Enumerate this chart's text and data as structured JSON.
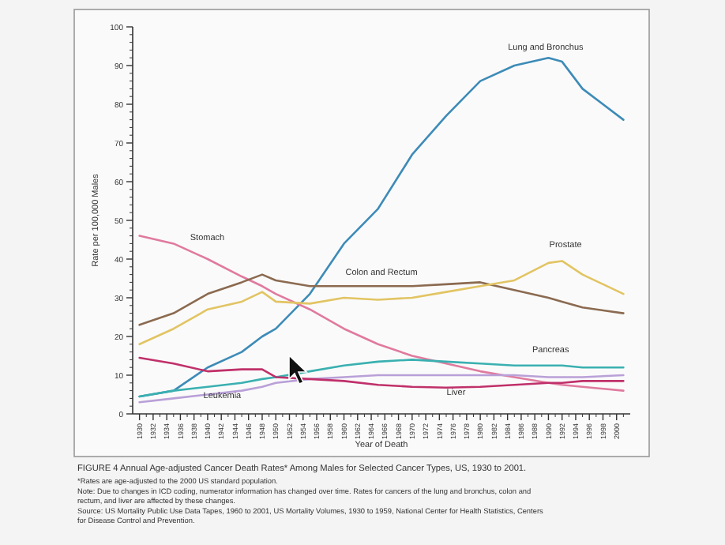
{
  "chart_data": {
    "type": "line",
    "title": "FIGURE 4  Annual Age-adjusted Cancer Death Rates* Among Males for Selected Cancer Types, US, 1930 to 2001.",
    "xlabel": "Year of Death",
    "ylabel": "Rate per 100,000 Males",
    "annotations": [
      "*Rates are age-adjusted to the 2000 US standard population.",
      "Note: Due to changes in ICD coding, numerator information has changed over time. Rates for cancers of the lung and bronchus, colon and rectum, and liver are affected by these changes.",
      "Source: US Mortality Public Use Data Tapes, 1960 to 2001, US Mortality Volumes, 1930 to 1959, National Center for Health Statistics, Centers for Disease Control and Prevention."
    ],
    "x": [
      1930,
      1935,
      1940,
      1945,
      1948,
      1950,
      1955,
      1960,
      1965,
      1970,
      1975,
      1980,
      1985,
      1990,
      1992,
      1995,
      2001
    ],
    "series": [
      {
        "name": "Lung and Bronchus",
        "color": "#3d8bb8",
        "values": [
          4.5,
          6,
          12,
          16,
          20,
          22,
          31,
          44,
          53,
          67,
          77,
          86,
          90,
          92,
          91,
          84,
          76
        ]
      },
      {
        "name": "Stomach",
        "color": "#e07a9e",
        "values": [
          46,
          44,
          40,
          35.5,
          33,
          31,
          27,
          22,
          18,
          15,
          13,
          11,
          9.5,
          8,
          7.5,
          7,
          6
        ]
      },
      {
        "name": "Colon and Rectum",
        "color": "#8b6a50",
        "values": [
          23,
          26,
          31,
          34,
          36,
          34.5,
          33,
          33,
          33,
          33,
          33.5,
          34,
          32,
          30,
          29,
          27.5,
          26
        ]
      },
      {
        "name": "Prostate",
        "color": "#e2c463",
        "values": [
          18,
          22,
          27,
          29,
          31.5,
          29,
          28.5,
          30,
          29.5,
          30,
          31.5,
          33,
          34.5,
          39,
          39.5,
          36,
          31
        ]
      },
      {
        "name": "Pancreas",
        "color": "#3ab0b0",
        "values": [
          4.5,
          6,
          7,
          8,
          9,
          9.5,
          11,
          12.5,
          13.5,
          14,
          13.5,
          13,
          12.5,
          12.5,
          12.5,
          12,
          12
        ]
      },
      {
        "name": "Leukemia",
        "color": "#b9a0d8",
        "values": [
          3,
          4,
          5,
          6,
          7,
          8,
          9,
          9.5,
          10,
          10,
          10,
          10,
          10,
          9.5,
          9.5,
          9.5,
          10
        ]
      },
      {
        "name": "Liver",
        "color": "#c0306a",
        "values": [
          14.5,
          13,
          11,
          11.5,
          11.5,
          9.5,
          9,
          8.5,
          7.5,
          7,
          6.8,
          7,
          7.5,
          8,
          8,
          8.5,
          8.5
        ]
      }
    ],
    "xlim": [
      1929,
      2002
    ],
    "ylim": [
      0,
      100
    ],
    "xticks": [
      1930,
      1932,
      1934,
      1936,
      1938,
      1940,
      1942,
      1944,
      1946,
      1948,
      1950,
      1952,
      1954,
      1956,
      1958,
      1960,
      1962,
      1964,
      1966,
      1968,
      1970,
      1972,
      1974,
      1976,
      1978,
      1980,
      1982,
      1984,
      1986,
      1988,
      1990,
      1992,
      1994,
      1996,
      1998,
      2000
    ],
    "yticks": [
      0,
      10,
      20,
      30,
      40,
      50,
      60,
      70,
      80,
      90,
      100
    ],
    "legend": false,
    "grid": false,
    "marker": "none",
    "line_style": "solid"
  }
}
